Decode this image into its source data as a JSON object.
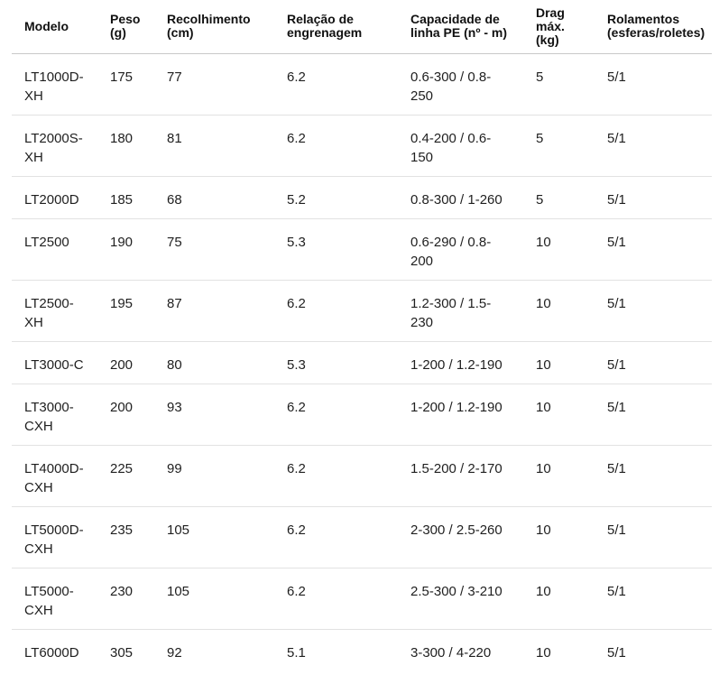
{
  "colors": {
    "background": "#ffffff",
    "header_text": "#111111",
    "body_text": "#1f1f1f",
    "header_border": "#c9c9c9",
    "row_border": "#e2e2e2"
  },
  "table": {
    "headers": [
      "Modelo",
      "Peso (g)",
      "Recolhimento (cm)",
      "Relação de engrenagem",
      "Capacidade de linha PE (nº - m)",
      "Drag máx. (kg)",
      "Rolamentos (esferas/roletes)"
    ],
    "rows": [
      [
        "LT1000D-XH",
        "175",
        "77",
        "6.2",
        "0.6-300 / 0.8-250",
        "5",
        "5/1"
      ],
      [
        "LT2000S-XH",
        "180",
        "81",
        "6.2",
        "0.4-200 / 0.6-150",
        "5",
        "5/1"
      ],
      [
        "LT2000D",
        "185",
        "68",
        "5.2",
        "0.8-300 / 1-260",
        "5",
        "5/1"
      ],
      [
        "LT2500",
        "190",
        "75",
        "5.3",
        "0.6-290 / 0.8-200",
        "10",
        "5/1"
      ],
      [
        "LT2500-XH",
        "195",
        "87",
        "6.2",
        "1.2-300 / 1.5-230",
        "10",
        "5/1"
      ],
      [
        "LT3000-C",
        "200",
        "80",
        "5.3",
        "1-200 / 1.2-190",
        "10",
        "5/1"
      ],
      [
        "LT3000-CXH",
        "200",
        "93",
        "6.2",
        "1-200 / 1.2-190",
        "10",
        "5/1"
      ],
      [
        "LT4000D-CXH",
        "225",
        "99",
        "6.2",
        "1.5-200 / 2-170",
        "10",
        "5/1"
      ],
      [
        "LT5000D-CXH",
        "235",
        "105",
        "6.2",
        "2-300 / 2.5-260",
        "10",
        "5/1"
      ],
      [
        "LT5000-CXH",
        "230",
        "105",
        "6.2",
        "2.5-300 / 3-210",
        "10",
        "5/1"
      ],
      [
        "LT6000D",
        "305",
        "92",
        "5.1",
        "3-300 / 4-220",
        "10",
        "5/1"
      ]
    ]
  }
}
